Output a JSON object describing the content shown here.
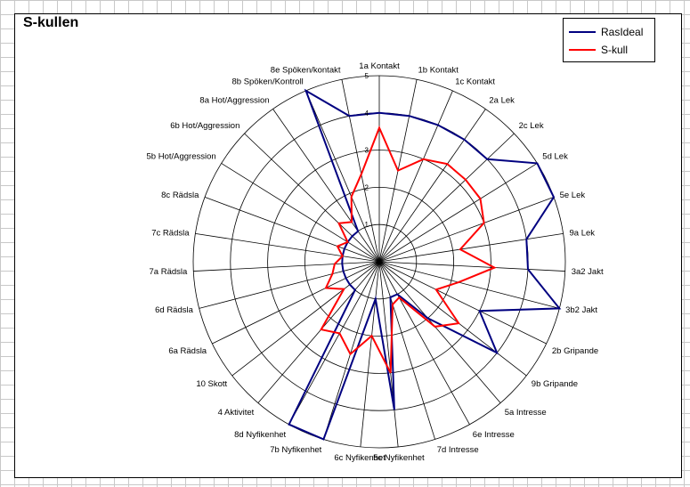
{
  "colors": {
    "background": "#ffffff",
    "grid": "#c8c8c8",
    "chart_lines": "#000000"
  },
  "chart_data": {
    "type": "radar",
    "title": "S-kullen",
    "rmax": 5,
    "ring_values": [
      1,
      2,
      3,
      4,
      5
    ],
    "ring_labels": [
      "1",
      "2",
      "3",
      "4",
      "5"
    ],
    "categories": [
      "1a Kontakt",
      "1b Kontakt",
      "1c Kontakt",
      "2a Lek",
      "2c Lek",
      "5d Lek",
      "5e Lek",
      "9a Lek",
      "3a2 Jakt",
      "3b2 Jakt",
      "2b Gripande",
      "9b Gripande",
      "5a Intresse",
      "6e Intresse",
      "7d Intresse",
      "5c Nyfikenhet",
      "6c Nyfikenhet",
      "7b Nyfikenhet",
      "8d Nyfikenhet",
      "4 Aktivitet",
      "10 Skott",
      "6a Rädsla",
      "6d Rädsla",
      "7a Rädsla",
      "7c Rädsla",
      "8c Rädsla",
      "5b Hot/Aggression",
      "6b Hot/Aggression",
      "8a Hot/Aggression",
      "8b Spöken/Kontroll",
      "8e Spöken/kontakt"
    ],
    "series": [
      {
        "name": "RasIdeal",
        "color": "#000080",
        "values": [
          4.0,
          4.0,
          4.0,
          4.0,
          4.0,
          5.0,
          5.0,
          4.0,
          4.0,
          5.0,
          3.0,
          4.0,
          2.0,
          1.0,
          1.0,
          4.0,
          1.0,
          5.0,
          5.0,
          1.0,
          1.0,
          1.0,
          1.0,
          1.0,
          1.0,
          1.0,
          1.0,
          1.0,
          1.0,
          5.0,
          4.0
        ]
      },
      {
        "name": "S-kull",
        "color": "#ff0000",
        "values": [
          3.6,
          2.5,
          3.0,
          3.2,
          3.2,
          3.2,
          3.0,
          2.2,
          3.1,
          2.2,
          1.7,
          2.7,
          2.3,
          1.1,
          1.2,
          3.0,
          2.0,
          2.6,
          2.2,
          2.4,
          1.2,
          1.6,
          1.3,
          1.2,
          1.0,
          1.2,
          1.0,
          1.5,
          1.3,
          1.9,
          2.4
        ]
      }
    ],
    "legend_position": "top-right"
  }
}
